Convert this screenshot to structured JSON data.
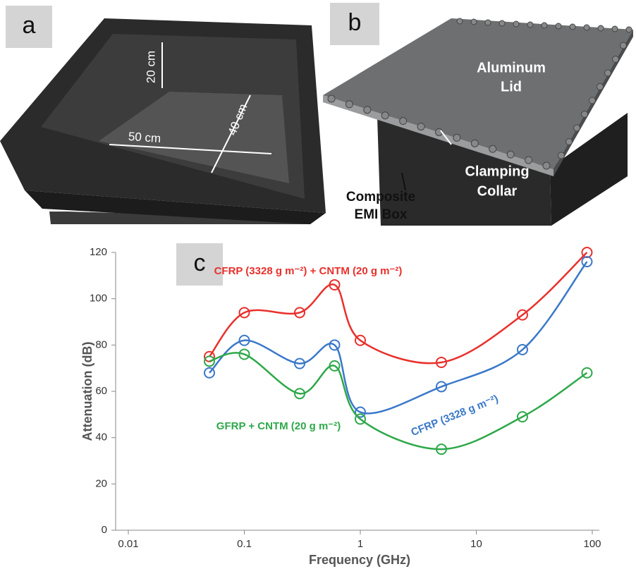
{
  "panels": {
    "a": {
      "label": "a",
      "dimensions": [
        "20 cm",
        "40 cm",
        "50 cm"
      ]
    },
    "b": {
      "label": "b",
      "lid": [
        "Aluminum",
        "Lid"
      ],
      "collar": [
        "Clamping",
        "Collar"
      ],
      "box": [
        "Composite",
        "EMI Box"
      ]
    },
    "c": {
      "label": "c"
    }
  },
  "chart_data": {
    "type": "line",
    "x_label": "Frequency (GHz)",
    "y_label": "Attenuation (dB)",
    "xscale": "log",
    "xlim": [
      0.01,
      100
    ],
    "xticks": [
      0.01,
      0.1,
      1,
      10,
      100
    ],
    "ylim": [
      0,
      120
    ],
    "yticks": [
      0,
      20,
      40,
      60,
      80,
      100,
      120
    ],
    "grid": false,
    "markers": "open-circle",
    "x": [
      0.05,
      0.1,
      0.3,
      0.6,
      1,
      5,
      25,
      90
    ],
    "series": [
      {
        "name": "CFRP (3328 g m⁻²) + CNTM (20 g m⁻²)",
        "color": "#e8302c",
        "values": [
          75,
          94,
          94,
          106,
          82,
          72.5,
          93,
          120
        ]
      },
      {
        "name": "CFRP (3328 g m⁻²)",
        "color": "#3a78c9",
        "values": [
          68,
          82,
          72,
          80,
          51,
          62,
          78,
          116
        ]
      },
      {
        "name": "GFRP + CNTM (20 g m⁻²)",
        "color": "#2ea84a",
        "values": [
          73,
          76,
          59,
          71,
          48,
          35,
          49,
          68
        ]
      }
    ]
  }
}
